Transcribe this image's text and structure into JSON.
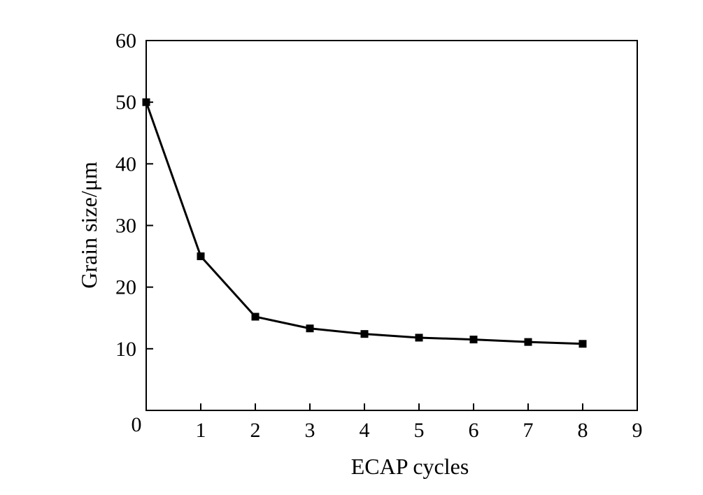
{
  "chart_data": {
    "type": "line",
    "title": "",
    "xlabel": "ECAP cycles",
    "ylabel": "Grain size/μm",
    "xlim": [
      0,
      9
    ],
    "ylim": [
      0,
      60
    ],
    "x_ticks": [
      0,
      1,
      2,
      3,
      4,
      5,
      6,
      7,
      8,
      9
    ],
    "x_tick_labels": [
      "0",
      "1",
      "2",
      "3",
      "4",
      "5",
      "6",
      "7",
      "8",
      "9"
    ],
    "y_ticks": [
      10,
      20,
      30,
      40,
      50,
      60
    ],
    "y_tick_labels": [
      "10",
      "20",
      "30",
      "40",
      "50",
      "60"
    ],
    "grid": false,
    "legend": "none",
    "marker": "square",
    "series": [
      {
        "color": "#000000",
        "x": [
          0,
          1,
          2,
          3,
          4,
          5,
          6,
          7,
          8
        ],
        "y": [
          50,
          25,
          15.2,
          13.3,
          12.4,
          11.8,
          11.5,
          11.1,
          10.8
        ]
      }
    ]
  }
}
